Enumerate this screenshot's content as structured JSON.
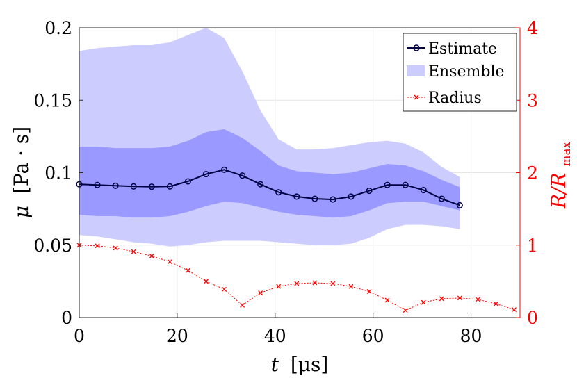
{
  "chart_data": {
    "type": "line",
    "x_axis": {
      "label_var": "t",
      "label_unit": "[μs]",
      "range": [
        0,
        90
      ],
      "ticks": [
        "0",
        "20",
        "40",
        "60",
        "80"
      ],
      "tick_values": [
        0,
        20,
        40,
        60,
        80
      ]
    },
    "y_left": {
      "label_var": "μ",
      "label_unit": "[Pa · s]",
      "range": [
        0,
        0.2
      ],
      "ticks": [
        "0",
        "0.05",
        "0.1",
        "0.15",
        "0.2"
      ],
      "tick_values": [
        0,
        0.05,
        0.1,
        0.15,
        0.2
      ]
    },
    "y_right": {
      "label_var": "R/R",
      "label_sub": "max",
      "range": [
        0,
        4
      ],
      "ticks": [
        "0",
        "1",
        "2",
        "3",
        "4"
      ],
      "tick_values": [
        0,
        1,
        2,
        3,
        4
      ],
      "color": "#ff0000"
    },
    "grid": true,
    "legend_position": "top-right",
    "legend": [
      "Estimate",
      "Ensemble",
      "Radius"
    ],
    "colors": {
      "estimate": "#000044",
      "band_outer": "#ccccff",
      "band_inner": "#9999ff",
      "radius": "#ff0000"
    },
    "series": [
      {
        "name": "Estimate",
        "axis": "left",
        "x": [
          0,
          3.7,
          7.4,
          11.1,
          14.8,
          18.5,
          22.2,
          25.9,
          29.6,
          33.3,
          37.0,
          40.7,
          44.4,
          48.1,
          51.8,
          55.5,
          59.2,
          62.9,
          66.6,
          70.3,
          74.0,
          77.7
        ],
        "y": [
          0.092,
          0.0915,
          0.091,
          0.0905,
          0.0903,
          0.0905,
          0.094,
          0.099,
          0.102,
          0.098,
          0.092,
          0.0865,
          0.0835,
          0.082,
          0.0815,
          0.0835,
          0.0875,
          0.0915,
          0.0915,
          0.088,
          0.082,
          0.0775
        ]
      },
      {
        "name": "Ensemble",
        "axis": "left",
        "x": [
          0,
          3.7,
          7.4,
          11.1,
          14.8,
          18.5,
          22.2,
          25.9,
          29.6,
          33.3,
          37.0,
          40.7,
          44.4,
          48.1,
          51.8,
          55.5,
          59.2,
          62.9,
          66.6,
          70.3,
          74.0,
          77.7
        ],
        "outer_upper": [
          0.184,
          0.186,
          0.187,
          0.188,
          0.188,
          0.19,
          0.195,
          0.2,
          0.193,
          0.17,
          0.143,
          0.123,
          0.116,
          0.116,
          0.117,
          0.119,
          0.121,
          0.122,
          0.12,
          0.114,
          0.104,
          0.097
        ],
        "inner_upper": [
          0.118,
          0.118,
          0.117,
          0.117,
          0.117,
          0.118,
          0.122,
          0.128,
          0.13,
          0.124,
          0.115,
          0.105,
          0.101,
          0.1,
          0.099,
          0.1,
          0.103,
          0.106,
          0.105,
          0.101,
          0.095,
          0.09
        ],
        "inner_lower": [
          0.071,
          0.07,
          0.07,
          0.069,
          0.069,
          0.07,
          0.073,
          0.077,
          0.08,
          0.079,
          0.076,
          0.073,
          0.071,
          0.07,
          0.069,
          0.07,
          0.074,
          0.079,
          0.08,
          0.08,
          0.077,
          0.074
        ],
        "outer_lower": [
          0.057,
          0.056,
          0.054,
          0.052,
          0.051,
          0.049,
          0.05,
          0.052,
          0.053,
          0.053,
          0.053,
          0.052,
          0.051,
          0.05,
          0.05,
          0.051,
          0.055,
          0.061,
          0.064,
          0.064,
          0.063,
          0.061
        ]
      },
      {
        "name": "Radius",
        "axis": "right",
        "x": [
          0,
          3.7,
          7.4,
          11.1,
          14.8,
          18.5,
          22.2,
          25.9,
          29.6,
          33.3,
          37.0,
          40.7,
          44.4,
          48.1,
          51.8,
          55.5,
          59.2,
          62.9,
          66.6,
          70.3,
          74.0,
          77.7,
          81.4,
          85.1,
          88.8
        ],
        "y": [
          1.0,
          0.99,
          0.96,
          0.91,
          0.85,
          0.77,
          0.65,
          0.5,
          0.39,
          0.17,
          0.34,
          0.43,
          0.47,
          0.48,
          0.47,
          0.43,
          0.36,
          0.24,
          0.1,
          0.21,
          0.26,
          0.27,
          0.25,
          0.19,
          0.11
        ]
      }
    ]
  }
}
